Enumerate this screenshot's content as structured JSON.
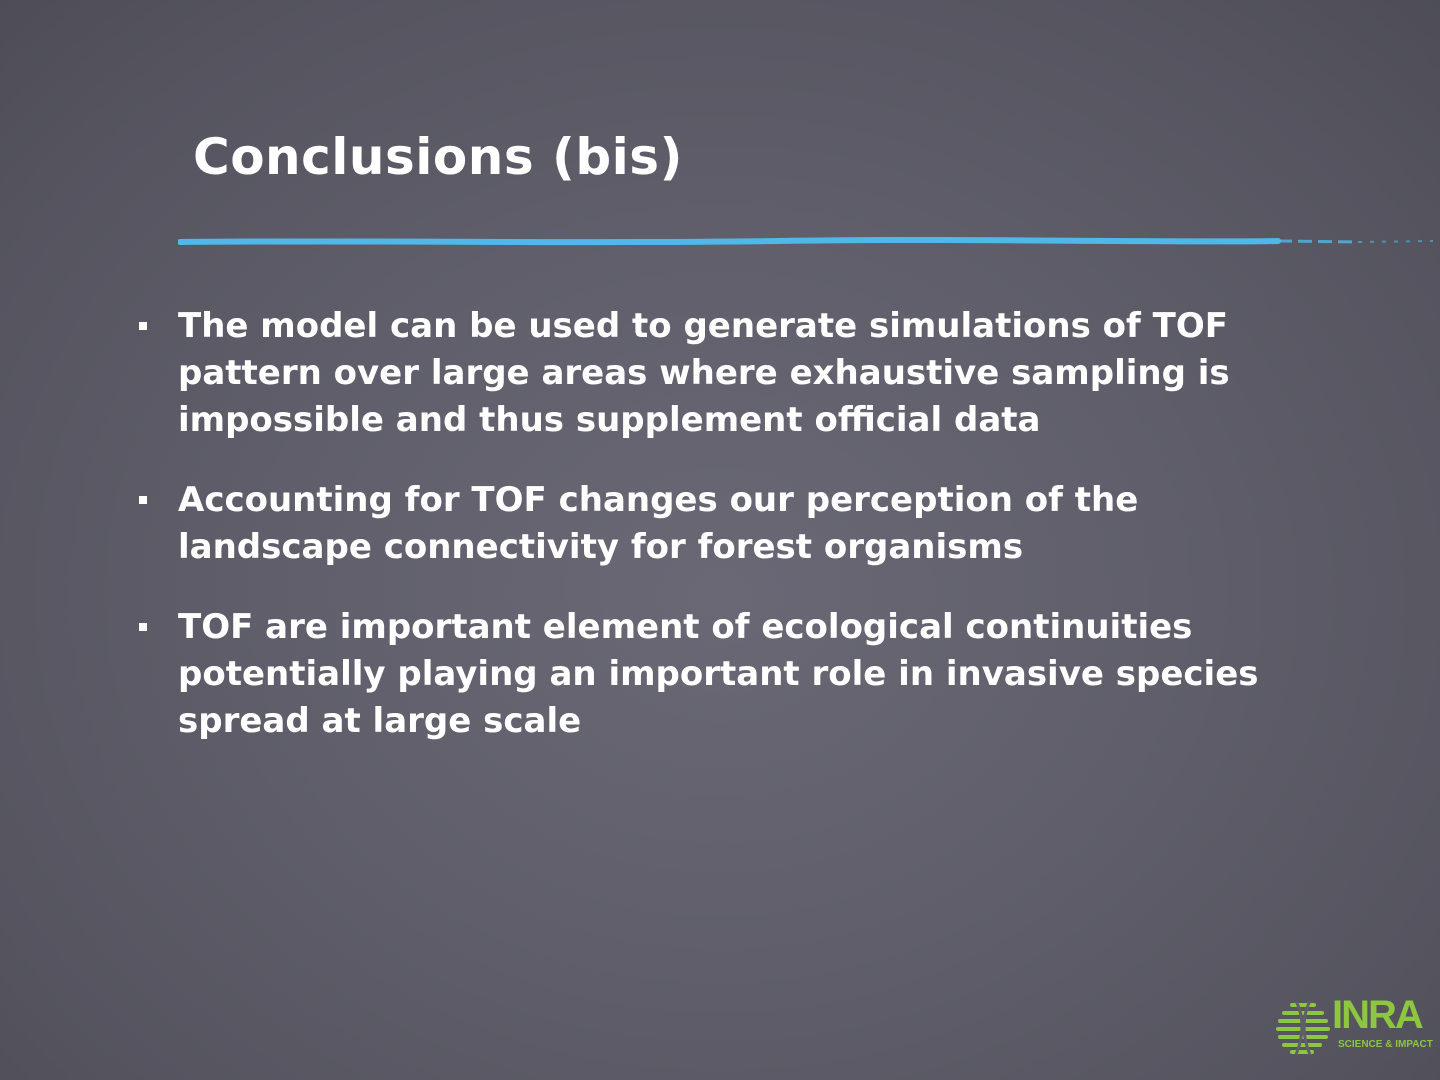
{
  "slide": {
    "title": "Conclusions (bis)",
    "bullets": [
      {
        "text": "The model can be used to generate simulations of TOF pattern over large areas where exhaustive sampling is impossible and thus supplement official data"
      },
      {
        "text": "Accounting for TOF changes our perception of the landscape connectivity for forest organisms"
      },
      {
        "text": "TOF are important element of ecological continuities potentially playing an important role in invasive species spread at large scale"
      }
    ]
  },
  "logo": {
    "name": "INRA",
    "tagline": "SCIENCE & IMPACT",
    "color": "#8dc63f"
  },
  "colors": {
    "background": "#5f5e6a",
    "text": "#ffffff",
    "accent_rule": "#4fb8e8"
  }
}
